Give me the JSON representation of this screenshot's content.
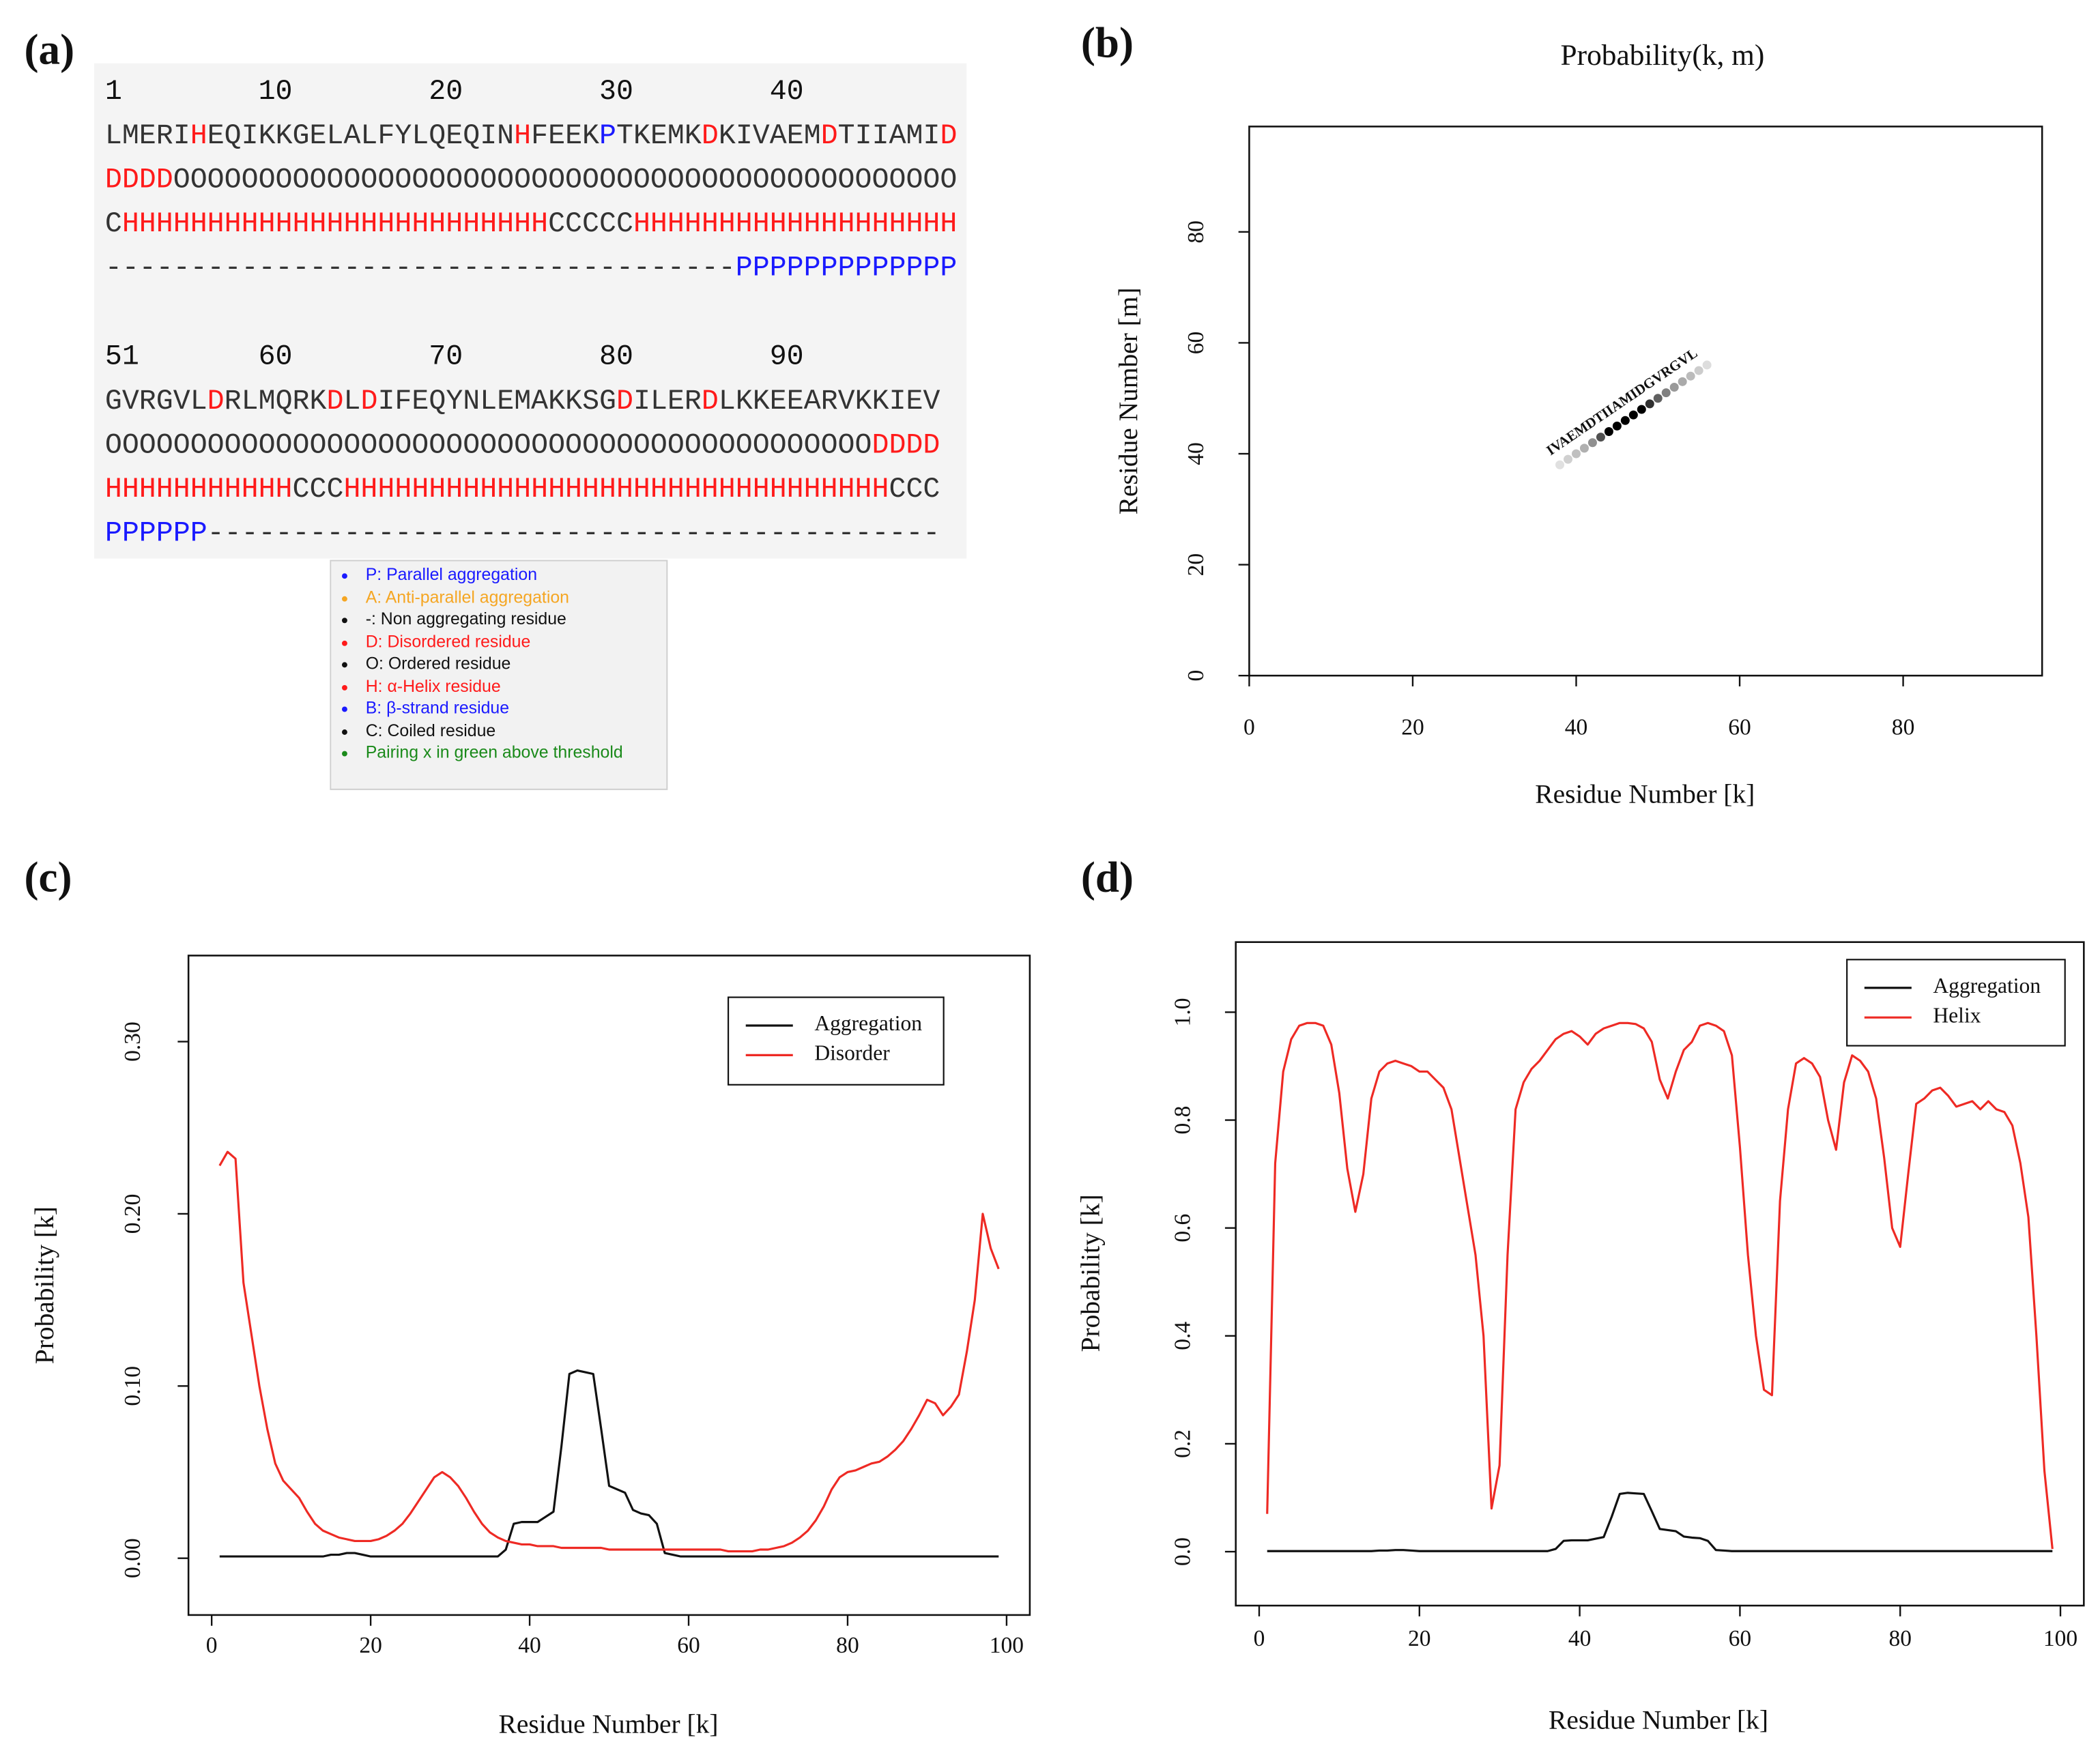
{
  "panel_labels": [
    "(a)",
    "(b)",
    "(c)",
    "(d)"
  ],
  "sequence_panel": {
    "char_colors": {
      "D": "#ff1a1a",
      "H": "#ff1a1a",
      "P": "#1a1aff"
    },
    "blocks": [
      {
        "ruler": [
          1,
          10,
          20,
          30,
          40
        ],
        "sequence": "LMERIHEQIKKGELALFYLQEQINHFEEKPTKEMKDKIVAEMDTIIAMID",
        "disorder": "DDDDOOOOOOOOOOOOOOOOOOOOOOOOOOOOOOOOOOOOOOOOOOOOOO",
        "structure": "CHHHHHHHHHHHHHHHHHHHHHHHHHCCCCCHHHHHHHHHHHHHHHHHHH",
        "aggregation": "-------------------------------------PPPPPPPPPPPPP"
      },
      {
        "ruler": [
          51,
          60,
          70,
          80,
          90
        ],
        "sequence": "GVRGVLDRLMQRKDLDIFEQYNLEMAKKSGDILERDLKKEEARVKKIEV",
        "disorder": "OOOOOOOOOOOOOOOOOOOOOOOOOOOOOOOOOOOOOOOOOOOOODDDD",
        "structure": "HHHHHHHHHHHCCCHHHHHHHHHHHHHHHHHHHHHHHHHHHHHHHHCCC",
        "aggregation": "PPPPPP-------------------------------------------"
      }
    ],
    "legend": [
      {
        "text": "P: Parallel aggregation",
        "color": "#1a1aff"
      },
      {
        "text": "A: Anti-parallel aggregation",
        "color": "#f5a623"
      },
      {
        "text": "-: Non aggregating residue",
        "color": "#111111"
      },
      {
        "text": "D: Disordered residue",
        "color": "#ff1a1a"
      },
      {
        "text": "O: Ordered residue",
        "color": "#111111"
      },
      {
        "text": "H: α-Helix residue",
        "color": "#ff1a1a"
      },
      {
        "text": "B: β-strand residue",
        "color": "#1a1aff"
      },
      {
        "text": "C: Coiled residue",
        "color": "#111111"
      },
      {
        "text": "Pairing x in green above threshold",
        "color": "#1a8a1a"
      }
    ]
  },
  "chart_data": [
    {
      "type": "scatter",
      "title": "Probability(k, m)",
      "xlabel": "Residue Number [k]",
      "ylabel": "Residue Number [m]",
      "x": [
        38,
        39,
        40,
        41,
        42,
        43,
        44,
        45,
        46,
        47,
        48,
        49,
        50,
        51,
        52,
        53,
        54,
        55,
        56
      ],
      "values": [
        38,
        39,
        40,
        41,
        42,
        43,
        44,
        45,
        46,
        47,
        48,
        49,
        50,
        51,
        52,
        53,
        54,
        55,
        56
      ],
      "colors": [
        "#e0e0e0",
        "#d0d0d0",
        "#c0c0c0",
        "#b0b0b0",
        "#909090",
        "#505050",
        "#000000",
        "#000000",
        "#000000",
        "#000000",
        "#000000",
        "#303030",
        "#606060",
        "#808080",
        "#999999",
        "#aaaaaa",
        "#bbbbbb",
        "#cccccc",
        "#dddddd"
      ],
      "annotation": "IVAEMDTIIAMIDGVRGVL",
      "xlim": [
        0,
        97
      ],
      "ylim": [
        0,
        99
      ],
      "xticks": [
        0,
        20,
        40,
        60,
        80
      ],
      "yticks": [
        0,
        20,
        40,
        60,
        80
      ]
    },
    {
      "type": "line",
      "xlabel": "Residue Number [k]",
      "ylabel": "Probability [k]",
      "legend": "topright",
      "x": [
        1,
        2,
        3,
        4,
        5,
        6,
        7,
        8,
        9,
        10,
        11,
        12,
        13,
        14,
        15,
        16,
        17,
        18,
        19,
        20,
        21,
        22,
        23,
        24,
        25,
        26,
        27,
        28,
        29,
        30,
        31,
        32,
        33,
        34,
        35,
        36,
        37,
        38,
        39,
        40,
        41,
        42,
        43,
        44,
        45,
        46,
        47,
        48,
        49,
        50,
        51,
        52,
        53,
        54,
        55,
        56,
        57,
        58,
        59,
        60,
        61,
        62,
        63,
        64,
        65,
        66,
        67,
        68,
        69,
        70,
        71,
        72,
        73,
        74,
        75,
        76,
        77,
        78,
        79,
        80,
        81,
        82,
        83,
        84,
        85,
        86,
        87,
        88,
        89,
        90,
        91,
        92,
        93,
        94,
        95,
        96,
        97,
        98,
        99
      ],
      "series": [
        {
          "name": "Aggregation",
          "color": "#111111",
          "values": [
            0.001,
            0.001,
            0.001,
            0.001,
            0.001,
            0.001,
            0.001,
            0.001,
            0.001,
            0.001,
            0.001,
            0.001,
            0.001,
            0.001,
            0.002,
            0.002,
            0.003,
            0.003,
            0.002,
            0.001,
            0.001,
            0.001,
            0.001,
            0.001,
            0.001,
            0.001,
            0.001,
            0.001,
            0.001,
            0.001,
            0.001,
            0.001,
            0.001,
            0.001,
            0.001,
            0.001,
            0.005,
            0.02,
            0.021,
            0.021,
            0.021,
            0.024,
            0.027,
            0.065,
            0.107,
            0.109,
            0.108,
            0.107,
            0.075,
            0.042,
            0.04,
            0.038,
            0.028,
            0.026,
            0.025,
            0.02,
            0.003,
            0.002,
            0.001,
            0.001,
            0.001,
            0.001,
            0.001,
            0.001,
            0.001,
            0.001,
            0.001,
            0.001,
            0.001,
            0.001,
            0.001,
            0.001,
            0.001,
            0.001,
            0.001,
            0.001,
            0.001,
            0.001,
            0.001,
            0.001,
            0.001,
            0.001,
            0.001,
            0.001,
            0.001,
            0.001,
            0.001,
            0.001,
            0.001,
            0.001,
            0.001,
            0.001,
            0.001,
            0.001,
            0.001,
            0.001,
            0.001,
            0.001,
            0.001
          ]
        },
        {
          "name": "Disorder",
          "color": "#ee2a24",
          "values": [
            0.228,
            0.236,
            0.232,
            0.16,
            0.13,
            0.1,
            0.075,
            0.055,
            0.045,
            0.04,
            0.035,
            0.027,
            0.02,
            0.016,
            0.014,
            0.012,
            0.011,
            0.01,
            0.01,
            0.01,
            0.011,
            0.013,
            0.016,
            0.02,
            0.026,
            0.033,
            0.04,
            0.047,
            0.05,
            0.047,
            0.042,
            0.035,
            0.027,
            0.02,
            0.015,
            0.012,
            0.01,
            0.009,
            0.008,
            0.008,
            0.007,
            0.007,
            0.007,
            0.006,
            0.006,
            0.006,
            0.006,
            0.006,
            0.006,
            0.005,
            0.005,
            0.005,
            0.005,
            0.005,
            0.005,
            0.005,
            0.005,
            0.005,
            0.005,
            0.005,
            0.005,
            0.005,
            0.005,
            0.005,
            0.004,
            0.004,
            0.004,
            0.004,
            0.005,
            0.005,
            0.006,
            0.007,
            0.009,
            0.012,
            0.016,
            0.022,
            0.03,
            0.04,
            0.047,
            0.05,
            0.051,
            0.053,
            0.055,
            0.056,
            0.059,
            0.063,
            0.068,
            0.075,
            0.083,
            0.092,
            0.09,
            0.083,
            0.088,
            0.095,
            0.12,
            0.15,
            0.2,
            0.18,
            0.168
          ]
        }
      ],
      "xlim": [
        -2.92,
        102.92
      ],
      "ylim": [
        -0.033,
        0.35
      ],
      "xticks": [
        0,
        20,
        40,
        60,
        80,
        100
      ],
      "yticks": [
        {
          "value": 0,
          "label": "0.00"
        },
        {
          "value": 0.1,
          "label": "0.10"
        },
        {
          "value": 0.2,
          "label": "0.20"
        },
        {
          "value": 0.3,
          "label": "0.30"
        }
      ]
    },
    {
      "type": "line",
      "xlabel": "Residue Number [k]",
      "ylabel": "Probability [k]",
      "legend": "topright",
      "x": [
        1,
        2,
        3,
        4,
        5,
        6,
        7,
        8,
        9,
        10,
        11,
        12,
        13,
        14,
        15,
        16,
        17,
        18,
        19,
        20,
        21,
        22,
        23,
        24,
        25,
        26,
        27,
        28,
        29,
        30,
        31,
        32,
        33,
        34,
        35,
        36,
        37,
        38,
        39,
        40,
        41,
        42,
        43,
        44,
        45,
        46,
        47,
        48,
        49,
        50,
        51,
        52,
        53,
        54,
        55,
        56,
        57,
        58,
        59,
        60,
        61,
        62,
        63,
        64,
        65,
        66,
        67,
        68,
        69,
        70,
        71,
        72,
        73,
        74,
        75,
        76,
        77,
        78,
        79,
        80,
        81,
        82,
        83,
        84,
        85,
        86,
        87,
        88,
        89,
        90,
        91,
        92,
        93,
        94,
        95,
        96,
        97,
        98,
        99
      ],
      "series": [
        {
          "name": "Aggregation",
          "color": "#111111",
          "values": [
            0.001,
            0.001,
            0.001,
            0.001,
            0.001,
            0.001,
            0.001,
            0.001,
            0.001,
            0.001,
            0.001,
            0.001,
            0.001,
            0.001,
            0.002,
            0.002,
            0.003,
            0.003,
            0.002,
            0.001,
            0.001,
            0.001,
            0.001,
            0.001,
            0.001,
            0.001,
            0.001,
            0.001,
            0.001,
            0.001,
            0.001,
            0.001,
            0.001,
            0.001,
            0.001,
            0.001,
            0.005,
            0.02,
            0.021,
            0.021,
            0.021,
            0.024,
            0.027,
            0.065,
            0.107,
            0.109,
            0.108,
            0.107,
            0.075,
            0.042,
            0.04,
            0.038,
            0.028,
            0.026,
            0.025,
            0.02,
            0.003,
            0.002,
            0.001,
            0.001,
            0.001,
            0.001,
            0.001,
            0.001,
            0.001,
            0.001,
            0.001,
            0.001,
            0.001,
            0.001,
            0.001,
            0.001,
            0.001,
            0.001,
            0.001,
            0.001,
            0.001,
            0.001,
            0.001,
            0.001,
            0.001,
            0.001,
            0.001,
            0.001,
            0.001,
            0.001,
            0.001,
            0.001,
            0.001,
            0.001,
            0.001,
            0.001,
            0.001,
            0.001,
            0.001,
            0.001,
            0.001,
            0.001,
            0.001
          ]
        },
        {
          "name": "Helix",
          "color": "#ee2a24",
          "values": [
            0.07,
            0.72,
            0.89,
            0.95,
            0.975,
            0.98,
            0.98,
            0.975,
            0.94,
            0.85,
            0.71,
            0.63,
            0.7,
            0.84,
            0.89,
            0.905,
            0.91,
            0.905,
            0.9,
            0.89,
            0.89,
            0.875,
            0.86,
            0.82,
            0.73,
            0.64,
            0.55,
            0.4,
            0.08,
            0.16,
            0.55,
            0.82,
            0.87,
            0.895,
            0.91,
            0.93,
            0.95,
            0.96,
            0.965,
            0.955,
            0.94,
            0.96,
            0.97,
            0.975,
            0.98,
            0.98,
            0.978,
            0.97,
            0.945,
            0.875,
            0.84,
            0.89,
            0.93,
            0.945,
            0.975,
            0.98,
            0.975,
            0.965,
            0.92,
            0.75,
            0.55,
            0.4,
            0.3,
            0.29,
            0.65,
            0.82,
            0.905,
            0.915,
            0.905,
            0.88,
            0.8,
            0.745,
            0.87,
            0.92,
            0.91,
            0.89,
            0.84,
            0.73,
            0.6,
            0.565,
            0.7,
            0.83,
            0.84,
            0.855,
            0.86,
            0.845,
            0.825,
            0.83,
            0.835,
            0.82,
            0.835,
            0.82,
            0.815,
            0.79,
            0.72,
            0.62,
            0.4,
            0.15,
            0.005
          ]
        }
      ],
      "xlim": [
        -2.92,
        102.92
      ],
      "ylim": [
        -0.1,
        1.13
      ],
      "xticks": [
        0,
        20,
        40,
        60,
        80,
        100
      ],
      "yticks": [
        {
          "value": 0,
          "label": "0.0"
        },
        0.2,
        0.4,
        0.6,
        0.8,
        {
          "value": 1,
          "label": "1.0"
        }
      ]
    }
  ]
}
